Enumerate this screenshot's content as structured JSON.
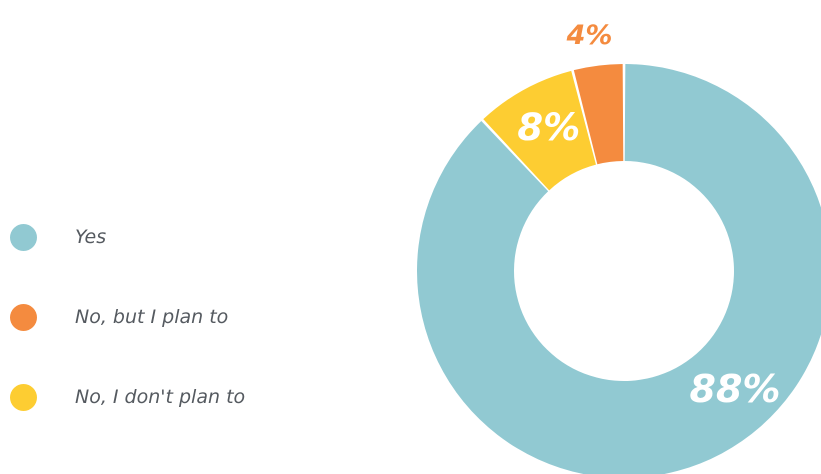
{
  "chart_data": {
    "type": "pie",
    "style": "donut",
    "title": "",
    "legend_position": "left",
    "slices": [
      {
        "label": "Yes",
        "value": 88,
        "display": "88%",
        "color": "#91c9d2",
        "label_color": "#ffffff"
      },
      {
        "label": "No, I don't plan to",
        "value": 8,
        "display": "8%",
        "color": "#fdcd32",
        "label_color": "#ffffff"
      },
      {
        "label": "No, but I plan to",
        "value": 4,
        "display": "4%",
        "color": "#f48b3f",
        "label_color": "#f48b3f"
      }
    ]
  },
  "legend": {
    "items": [
      {
        "label": "Yes",
        "color": "#91c9d2"
      },
      {
        "label": "No, but I plan to",
        "color": "#f48b3f"
      },
      {
        "label": "No, I don't plan to",
        "color": "#fdcd32"
      }
    ]
  }
}
